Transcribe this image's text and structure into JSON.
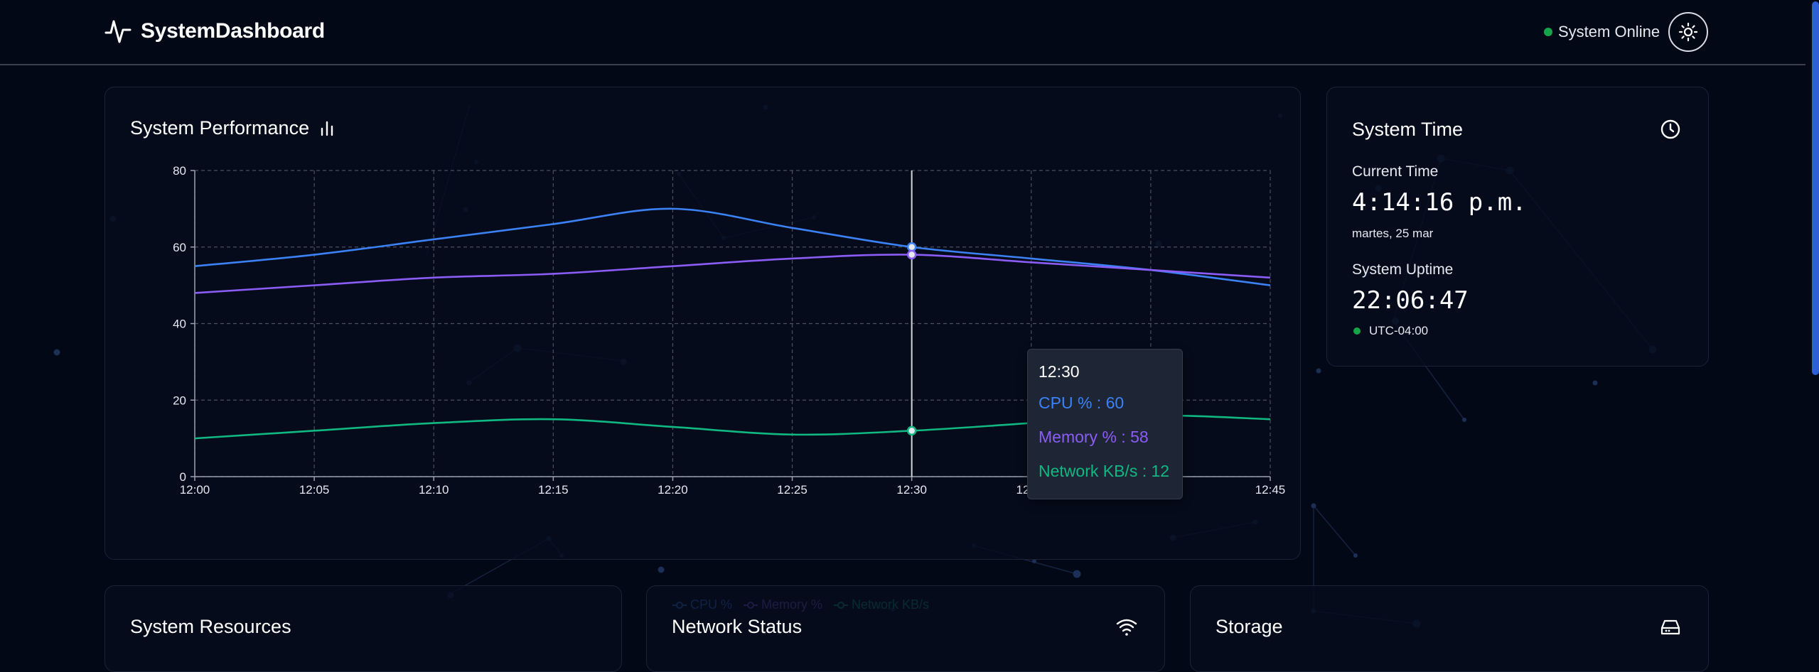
{
  "header": {
    "brand": "SystemDashboard",
    "status_text": "System Online",
    "status_color": "#16a34a",
    "theme_toggle_icon": "sun-icon"
  },
  "performance": {
    "title": "System Performance",
    "title_icon": "bar-chart-icon",
    "tooltip": {
      "time": "12:30",
      "cpu": "CPU % : 60",
      "memory": "Memory % : 58",
      "network": "Network KB/s : 12"
    }
  },
  "chart_data": {
    "type": "line",
    "x": [
      "12:00",
      "12:05",
      "12:10",
      "12:15",
      "12:20",
      "12:25",
      "12:30",
      "12:35",
      "12:40",
      "12:45"
    ],
    "series": [
      {
        "name": "CPU %",
        "color": "#3b82f6",
        "values": [
          55,
          58,
          62,
          66,
          70,
          65,
          60,
          57,
          54,
          50
        ]
      },
      {
        "name": "Memory %",
        "color": "#8b5cf6",
        "values": [
          48,
          50,
          52,
          53,
          55,
          57,
          58,
          56,
          54,
          52
        ]
      },
      {
        "name": "Network KB/s",
        "color": "#10b981",
        "values": [
          10,
          12,
          14,
          15,
          13,
          11,
          12,
          14,
          16,
          15
        ]
      }
    ],
    "ylim": [
      0,
      80
    ],
    "yticks": [
      "0",
      "20",
      "40",
      "60",
      "80"
    ],
    "grid": true,
    "legend_position": "bottom",
    "highlight_x": "12:30"
  },
  "system_time": {
    "title": "System Time",
    "clock_icon": "clock-icon",
    "current_time_label": "Current Time",
    "current_time": "4:14:16 p.m.",
    "date": "martes, 25 mar",
    "uptime_label": "System Uptime",
    "uptime": "22:06:47",
    "timezone": "UTC-04:00"
  },
  "bottom_cards": {
    "resources_title": "System Resources",
    "network_title": "Network Status",
    "network_icon": "wifi-icon",
    "storage_title": "Storage",
    "storage_icon": "hard-drive-icon"
  }
}
